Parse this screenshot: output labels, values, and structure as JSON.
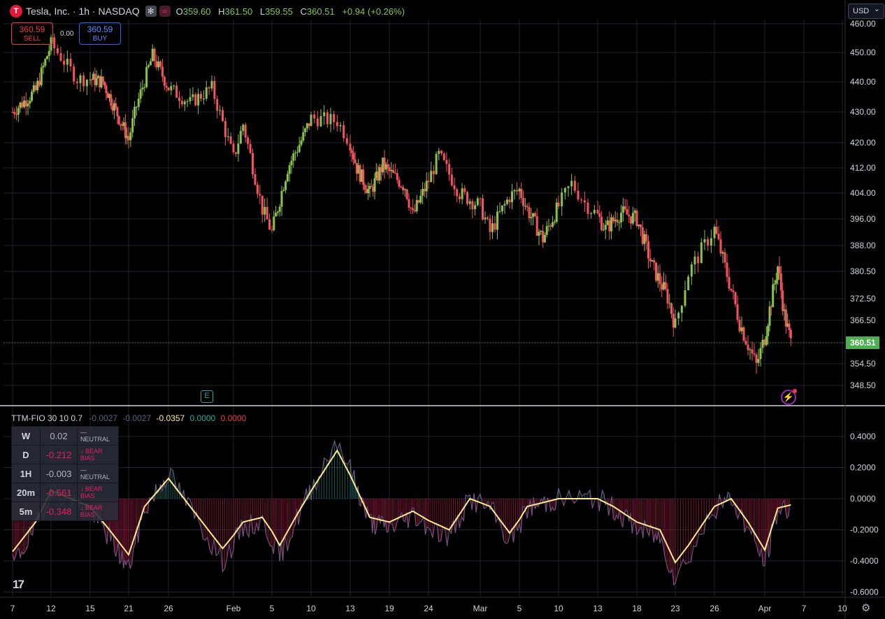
{
  "header": {
    "logo_letter": "T",
    "symbol": "Tesla, Inc. · 1h · NASDAQ",
    "icon_a": "asterisk-icon",
    "icon_b": "waves-icon",
    "ohlc": [
      {
        "k": "O",
        "v": "359.60"
      },
      {
        "k": "H",
        "v": "361.50"
      },
      {
        "k": "L",
        "v": "359.55"
      },
      {
        "k": "C",
        "v": "360.51"
      },
      {
        "k": "",
        "v": "+0.94 (+0.26%)"
      }
    ]
  },
  "trade": {
    "sell_price": "360.59",
    "sell_label": "SELL",
    "spread": "0.00",
    "buy_price": "360.59",
    "buy_label": "BUY"
  },
  "currency": "USD",
  "colors": {
    "up": "#8bc34a",
    "down": "#f7525f",
    "background": "#000000",
    "grid": "#1e222d",
    "osc_line": "#ffeb8a",
    "osc_hist_pos": "#26a69a",
    "osc_hist_neg": "#e91e63",
    "price_label": "#4caf50"
  },
  "indicator": {
    "name": "TTM-FIO 30 10 0.7",
    "values": [
      "-0.0027",
      "-0.0027",
      "-0.0357",
      "0.0000",
      "0.0000"
    ],
    "value_colors": [
      "#5d6280",
      "#5d6280",
      "#ffeb8a",
      "#26a69a",
      "#f23645"
    ]
  },
  "bias_table": {
    "rows": [
      {
        "tf": "W",
        "val": "0.02",
        "bias": "— NEUTRAL",
        "type": "neutral"
      },
      {
        "tf": "D",
        "val": "-0.212",
        "bias": "↓ BEAR BIAS",
        "type": "bear"
      },
      {
        "tf": "1H",
        "val": "-0.003",
        "bias": "— NEUTRAL",
        "type": "neutral"
      },
      {
        "tf": "20m",
        "val": "-0.561",
        "bias": "↓ BEAR BIAS",
        "type": "bear"
      },
      {
        "tf": "5m",
        "val": "-0.348",
        "bias": "↓ BEAR BIAS",
        "type": "bear"
      }
    ]
  },
  "badges": {
    "earnings": "E",
    "earnings_icon": "earnings-icon",
    "spark_icon": "spark-icon",
    "settings_icon": "gear-icon"
  },
  "chart_data": [
    {
      "type": "candlestick",
      "title": "Tesla, Inc. · 1h · NASDAQ",
      "x_ticks": [
        "7",
        "12",
        "15",
        "21",
        "26",
        "Feb",
        "5",
        "10",
        "13",
        "19",
        "24",
        "Mar",
        "5",
        "10",
        "13",
        "18",
        "23",
        "26",
        "Apr",
        "7",
        "10"
      ],
      "y_ticks": [
        "348.50",
        "354.50",
        "360.51",
        "366.50",
        "372.50",
        "380.50",
        "388.00",
        "396.00",
        "404.00",
        "412.00",
        "420.00",
        "430.00",
        "440.00",
        "450.00",
        "460.00"
      ],
      "ylim": [
        344,
        462
      ],
      "last_price": "360.51",
      "close_path": [
        {
          "x": "Jan 7",
          "y": 430
        },
        {
          "x": "Jan 10",
          "y": 437
        },
        {
          "x": "Jan 12",
          "y": 453
        },
        {
          "x": "Jan 14",
          "y": 441
        },
        {
          "x": "Jan 15",
          "y": 441
        },
        {
          "x": "Jan 17",
          "y": 440
        },
        {
          "x": "Jan 21",
          "y": 421
        },
        {
          "x": "Jan 22",
          "y": 432
        },
        {
          "x": "Jan 24",
          "y": 449
        },
        {
          "x": "Jan 26",
          "y": 438
        },
        {
          "x": "Jan 28",
          "y": 433
        },
        {
          "x": "Jan 30",
          "y": 438
        },
        {
          "x": "Feb 1",
          "y": 415
        },
        {
          "x": "Feb 2",
          "y": 426
        },
        {
          "x": "Feb 4",
          "y": 399
        },
        {
          "x": "Feb 5",
          "y": 392
        },
        {
          "x": "Feb 7",
          "y": 412
        },
        {
          "x": "Feb 9",
          "y": 422
        },
        {
          "x": "Feb 10",
          "y": 428
        },
        {
          "x": "Feb 12",
          "y": 427
        },
        {
          "x": "Feb 13",
          "y": 420
        },
        {
          "x": "Feb 14",
          "y": 412
        },
        {
          "x": "Feb 16",
          "y": 404
        },
        {
          "x": "Feb 18",
          "y": 413
        },
        {
          "x": "Feb 21",
          "y": 406
        },
        {
          "x": "Feb 22",
          "y": 397
        },
        {
          "x": "Feb 24",
          "y": 408
        },
        {
          "x": "Feb 25",
          "y": 416
        },
        {
          "x": "Feb 27",
          "y": 404
        },
        {
          "x": "Mar 1",
          "y": 400
        },
        {
          "x": "Mar 2",
          "y": 392
        },
        {
          "x": "Mar 4",
          "y": 403
        },
        {
          "x": "Mar 5",
          "y": 405
        },
        {
          "x": "Mar 6",
          "y": 399
        },
        {
          "x": "Mar 8",
          "y": 390
        },
        {
          "x": "Mar 10",
          "y": 400
        },
        {
          "x": "Mar 11",
          "y": 407
        },
        {
          "x": "Mar 12",
          "y": 401
        },
        {
          "x": "Mar 14",
          "y": 393
        },
        {
          "x": "Mar 16",
          "y": 398
        },
        {
          "x": "Mar 18",
          "y": 396
        },
        {
          "x": "Mar 20",
          "y": 382
        },
        {
          "x": "Mar 22",
          "y": 373
        },
        {
          "x": "Mar 23",
          "y": 365
        },
        {
          "x": "Mar 24",
          "y": 380
        },
        {
          "x": "Mar 26",
          "y": 393
        },
        {
          "x": "Mar 28",
          "y": 375
        },
        {
          "x": "Mar 29",
          "y": 366
        },
        {
          "x": "Mar 30",
          "y": 360
        },
        {
          "x": "Mar 31",
          "y": 354
        },
        {
          "x": "Apr 1",
          "y": 362
        },
        {
          "x": "Apr 2",
          "y": 372
        },
        {
          "x": "Apr 3",
          "y": 382
        },
        {
          "x": "Apr 4",
          "y": 368
        },
        {
          "x": "Apr 5",
          "y": 360.5
        }
      ]
    },
    {
      "type": "line",
      "title": "TTM-FIO 30 10 0.7",
      "y_ticks": [
        "0.4000",
        "0.2000",
        "0.0000",
        "-0.2000",
        "-0.4000",
        "-0.6000"
      ],
      "ylim": [
        -0.64,
        0.46
      ],
      "series": [
        {
          "values": [
            {
              "x": "Jan 7",
              "y": -0.34
            },
            {
              "x": "Jan 10",
              "y": -0.15
            },
            {
              "x": "Jan 12",
              "y": 0.05
            },
            {
              "x": "Jan 15",
              "y": -0.05
            },
            {
              "x": "Jan 18",
              "y": -0.2
            },
            {
              "x": "Jan 21",
              "y": -0.36
            },
            {
              "x": "Jan 23",
              "y": -0.05
            },
            {
              "x": "Jan 26",
              "y": 0.13
            },
            {
              "x": "Jan 28",
              "y": -0.05
            },
            {
              "x": "Jan 31",
              "y": -0.32
            },
            {
              "x": "Feb 2",
              "y": -0.15
            },
            {
              "x": "Feb 4",
              "y": -0.12
            },
            {
              "x": "Feb 6",
              "y": -0.3
            },
            {
              "x": "Feb 8",
              "y": -0.12
            },
            {
              "x": "Feb 10",
              "y": 0.05
            },
            {
              "x": "Feb 12",
              "y": 0.31
            },
            {
              "x": "Feb 13",
              "y": 0.15
            },
            {
              "x": "Feb 16",
              "y": -0.12
            },
            {
              "x": "Feb 19",
              "y": -0.15
            },
            {
              "x": "Feb 22",
              "y": -0.08
            },
            {
              "x": "Feb 26",
              "y": -0.2
            },
            {
              "x": "Feb 28",
              "y": 0.0
            },
            {
              "x": "Mar 2",
              "y": -0.05
            },
            {
              "x": "Mar 4",
              "y": -0.22
            },
            {
              "x": "Mar 6",
              "y": -0.05
            },
            {
              "x": "Mar 10",
              "y": -0.0
            },
            {
              "x": "Mar 13",
              "y": 0.0
            },
            {
              "x": "Mar 15",
              "y": -0.05
            },
            {
              "x": "Mar 18",
              "y": -0.15
            },
            {
              "x": "Mar 21",
              "y": -0.2
            },
            {
              "x": "Mar 23",
              "y": -0.41
            },
            {
              "x": "Mar 24",
              "y": -0.3
            },
            {
              "x": "Mar 26",
              "y": -0.05
            },
            {
              "x": "Mar 28",
              "y": 0.0
            },
            {
              "x": "Mar 30",
              "y": -0.15
            },
            {
              "x": "Apr 1",
              "y": -0.33
            },
            {
              "x": "Apr 3",
              "y": -0.06
            },
            {
              "x": "Apr 5",
              "y": -0.04
            }
          ]
        }
      ]
    }
  ]
}
